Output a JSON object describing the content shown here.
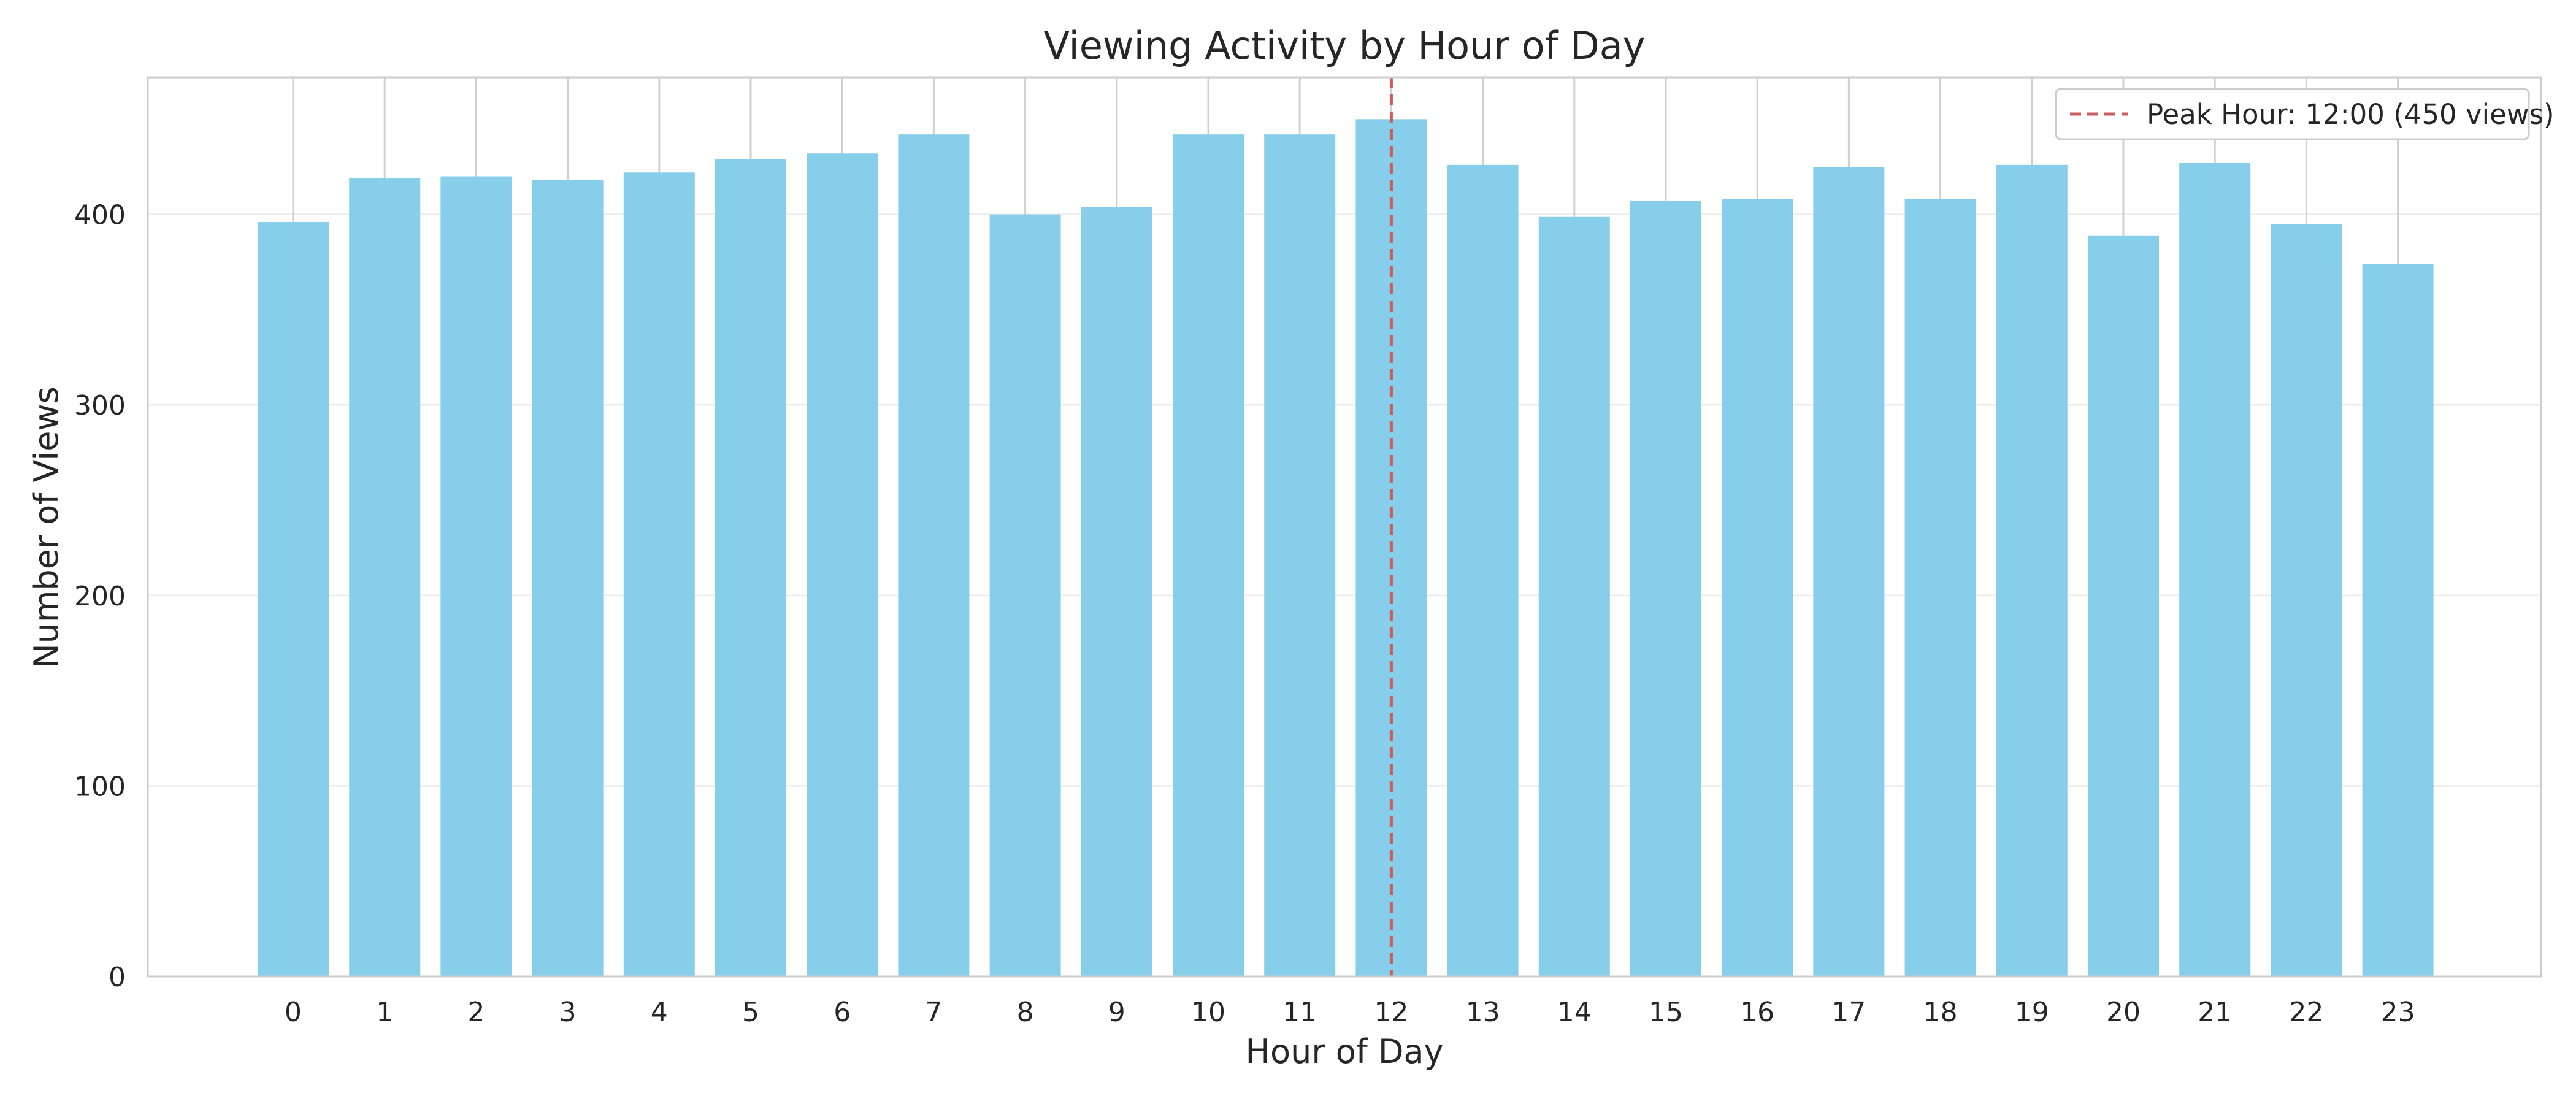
{
  "chart_data": {
    "type": "bar",
    "title": "Viewing Activity by Hour of Day",
    "xlabel": "Hour of Day",
    "ylabel": "Number of Views",
    "categories": [
      "0",
      "1",
      "2",
      "3",
      "4",
      "5",
      "6",
      "7",
      "8",
      "9",
      "10",
      "11",
      "12",
      "13",
      "14",
      "15",
      "16",
      "17",
      "18",
      "19",
      "20",
      "21",
      "22",
      "23"
    ],
    "values": [
      396,
      419,
      420,
      418,
      422,
      429,
      432,
      442,
      400,
      404,
      442,
      442,
      450,
      426,
      399,
      407,
      408,
      425,
      408,
      426,
      389,
      427,
      395,
      374
    ],
    "ylim": [
      0,
      472
    ],
    "yticks": [
      0,
      100,
      200,
      300,
      400
    ],
    "bar_color": "#87CEEB",
    "peak_line": {
      "x": 12,
      "color": "#CD5C5C",
      "style": "dashed"
    },
    "legend": {
      "position": "top-right",
      "entries": [
        "Peak Hour: 12:00 (450 views)"
      ]
    },
    "grid": true
  }
}
